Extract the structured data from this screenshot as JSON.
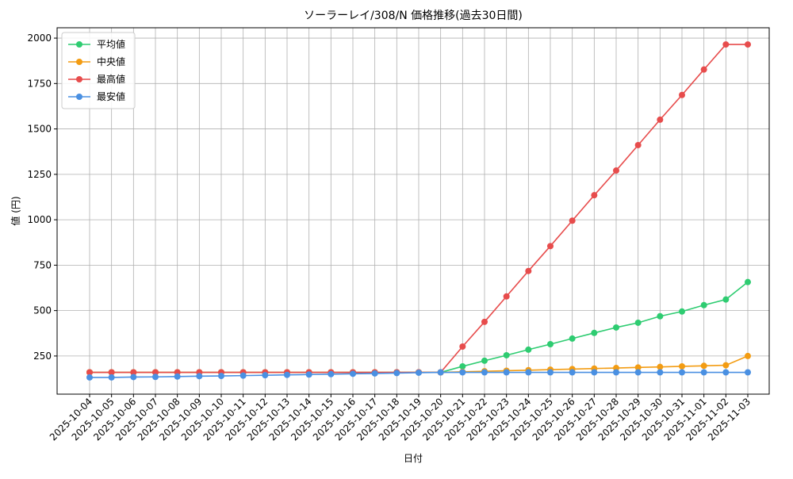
{
  "chart_data": {
    "type": "line",
    "title": "ソーラーレイ/308/N 価格推移(過去30日間)",
    "x_label": "日付",
    "y_label": "値 (円)",
    "categories": [
      "2025-10-04",
      "2025-10-05",
      "2025-10-06",
      "2025-10-07",
      "2025-10-08",
      "2025-10-09",
      "2025-10-10",
      "2025-10-11",
      "2025-10-12",
      "2025-10-13",
      "2025-10-14",
      "2025-10-15",
      "2025-10-16",
      "2025-10-17",
      "2025-10-18",
      "2025-10-19",
      "2025-10-20",
      "2025-10-21",
      "2025-10-22",
      "2025-10-23",
      "2025-10-24",
      "2025-10-25",
      "2025-10-26",
      "2025-10-27",
      "2025-10-28",
      "2025-10-29",
      "2025-10-30",
      "2025-10-31",
      "2025-11-01",
      "2025-11-02",
      "2025-11-03"
    ],
    "series": [
      {
        "name": "平均値",
        "color": "#2ecc71",
        "values": [
          160,
          160,
          160,
          160,
          160,
          160,
          160,
          160,
          160,
          160,
          160,
          160,
          160,
          160,
          160,
          160,
          160,
          193,
          224,
          254,
          285,
          315,
          346,
          377,
          407,
          433,
          469,
          495,
          530,
          561,
          657
        ]
      },
      {
        "name": "中央値",
        "color": "#f39c12",
        "values": [
          160,
          160,
          160,
          160,
          160,
          160,
          160,
          160,
          160,
          160,
          160,
          160,
          160,
          160,
          160,
          160,
          160,
          163,
          166,
          169,
          172,
          175,
          178,
          181,
          184,
          187,
          190,
          193,
          196,
          199,
          250
        ]
      },
      {
        "name": "最高値",
        "color": "#e74c4c",
        "values": [
          160,
          160,
          160,
          160,
          160,
          160,
          160,
          160,
          160,
          160,
          160,
          160,
          160,
          160,
          160,
          160,
          160,
          302,
          438,
          578,
          718,
          855,
          995,
          1135,
          1271,
          1411,
          1551,
          1687,
          1827,
          1965,
          1965
        ]
      },
      {
        "name": "最安値",
        "color": "#4a90e2",
        "values": [
          132,
          132,
          134,
          135,
          137,
          139,
          140,
          142,
          144,
          146,
          148,
          150,
          152,
          154,
          156,
          158,
          160,
          160,
          160,
          160,
          160,
          160,
          160,
          160,
          160,
          160,
          160,
          160,
          160,
          160,
          160
        ]
      }
    ],
    "ylim": [
      40,
      2057
    ],
    "yticks": [
      250,
      500,
      750,
      1000,
      1250,
      1500,
      1750,
      2000
    ],
    "grid": true,
    "legend": "upper left"
  }
}
